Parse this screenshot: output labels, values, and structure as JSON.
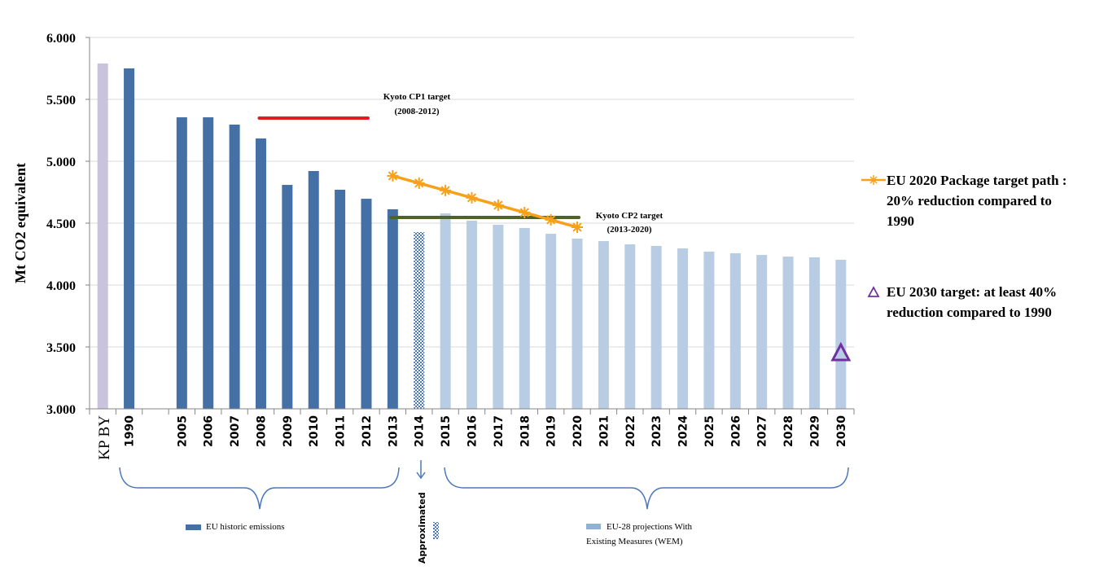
{
  "chart_data": {
    "type": "bar",
    "title": "",
    "xlabel": "",
    "ylabel": "Mt CO2 equivalent",
    "ylim": [
      3000,
      6000
    ],
    "yticks": [
      3000,
      3500,
      4000,
      4500,
      5000,
      5500,
      6000
    ],
    "ytick_labels": [
      "3.000",
      "3.500",
      "4.000",
      "4.500",
      "5.000",
      "5.500",
      "6.000"
    ],
    "grid": true,
    "categories": [
      "KP BY",
      "1990",
      "",
      "2005",
      "2006",
      "2007",
      "2008",
      "2009",
      "2010",
      "2011",
      "2012",
      "2013",
      "2014",
      "2015",
      "2016",
      "2017",
      "2018",
      "2019",
      "2020",
      "2021",
      "2022",
      "2023",
      "2024",
      "2025",
      "2026",
      "2027",
      "2028",
      "2029",
      "2030"
    ],
    "series": [
      {
        "name": "Kyoto base year",
        "color": "#c9c3dc",
        "values": [
          5790,
          null,
          null,
          null,
          null,
          null,
          null,
          null,
          null,
          null,
          null,
          null,
          null,
          null,
          null,
          null,
          null,
          null,
          null,
          null,
          null,
          null,
          null,
          null,
          null,
          null,
          null,
          null,
          null
        ]
      },
      {
        "name": "EU historic emissions",
        "color": "#4470a5",
        "values": [
          null,
          5750,
          null,
          5355,
          5355,
          5296,
          5184,
          4809,
          4921,
          4770,
          4697,
          4612,
          null,
          null,
          null,
          null,
          null,
          null,
          null,
          null,
          null,
          null,
          null,
          null,
          null,
          null,
          null,
          null,
          null
        ]
      },
      {
        "name": "Approximated",
        "color": "#4a78b8",
        "pattern": "dotted",
        "values": [
          null,
          null,
          null,
          null,
          null,
          null,
          null,
          null,
          null,
          null,
          null,
          null,
          4428,
          null,
          null,
          null,
          null,
          null,
          null,
          null,
          null,
          null,
          null,
          null,
          null,
          null,
          null,
          null,
          null
        ]
      },
      {
        "name": "EU-28 projections With Existing Measures (WEM)",
        "color": "#b8cce4",
        "values": [
          null,
          null,
          null,
          null,
          null,
          null,
          null,
          null,
          null,
          null,
          null,
          null,
          null,
          4579,
          4520,
          4487,
          4461,
          4414,
          4375,
          4355,
          4329,
          4316,
          4296,
          4270,
          4257,
          4243,
          4230,
          4224,
          4204
        ]
      }
    ],
    "lines": [
      {
        "name": "EU 2020 Package target path : 20% reduction compared to 1990",
        "color": "#f7a11a",
        "marker": "asterisk",
        "x": [
          "2013",
          "2014",
          "2015",
          "2016",
          "2017",
          "2018",
          "2019",
          "2020"
        ],
        "values": [
          4882,
          4823,
          4764,
          4705,
          4645,
          4586,
          4527,
          4467
        ]
      },
      {
        "name": "Kyoto CP1 target (2008-2012)",
        "color": "#e31b23",
        "x_start": "2008",
        "x_end": "2012",
        "value": 5349
      },
      {
        "name": "Kyoto CP2 target (2013-2020)",
        "color": "#4f6228",
        "x_start": "2013",
        "x_end": "2020",
        "value": 4546
      }
    ],
    "points": [
      {
        "name": "EU 2030 target: at least 40% reduction compared to 1990",
        "color": "#7030a0",
        "marker": "triangle",
        "x": "2030",
        "value": 3447
      }
    ],
    "annotations": {
      "kyoto_cp1": [
        "Kyoto CP1 target",
        "(2008-2012)"
      ],
      "kyoto_cp2": [
        "Kyoto CP2 target",
        "(2013-2020)"
      ],
      "historic_label": "EU historic emissions",
      "approx_label": "Approximated",
      "projection_label": [
        "EU-28 projections With",
        "Existing Measures (WEM)"
      ]
    },
    "legend": {
      "placement": "right",
      "entries": [
        {
          "lines": [
            "EU 2020 Package target path :",
            "20% reduction compared to",
            "1990"
          ],
          "color": "#f7a11a",
          "marker": "asterisk-line"
        },
        {
          "lines": [
            "EU 2030 target: at least 40%",
            "reduction compared to 1990"
          ],
          "color": "#7030a0",
          "marker": "triangle"
        }
      ]
    }
  }
}
